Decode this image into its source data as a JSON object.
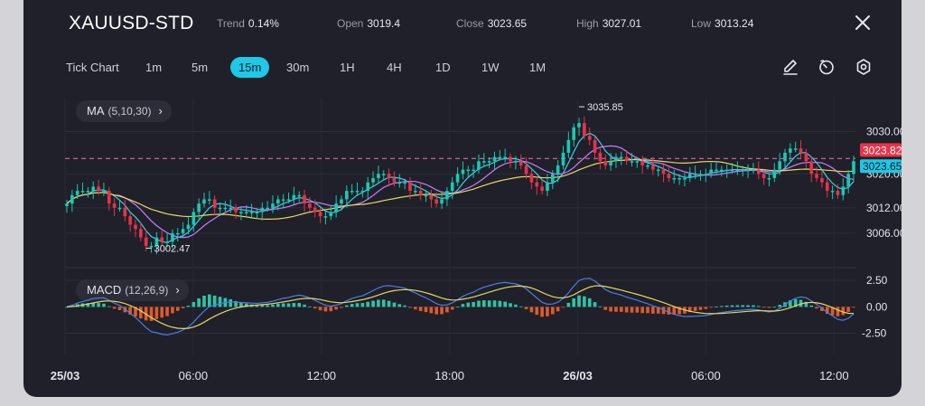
{
  "symbol": "XAUUSD-STD",
  "stats": [
    {
      "label": "Trend",
      "value": "0.14%"
    },
    {
      "label": "Open",
      "value": "3019.4"
    },
    {
      "label": "Close",
      "value": "3023.65"
    },
    {
      "label": "High",
      "value": "3027.01"
    },
    {
      "label": "Low",
      "value": "3013.24"
    }
  ],
  "timeframes": {
    "label": "Tick Chart",
    "items": [
      "1m",
      "5m",
      "15m",
      "30m",
      "1H",
      "4H",
      "1D",
      "1W",
      "1M"
    ],
    "active": "15m"
  },
  "tools": [
    "draw-icon",
    "clock-icon",
    "settings-icon"
  ],
  "indicators": {
    "ma": {
      "name": "MA",
      "params": "(5,10,30)",
      "chevron": "›"
    },
    "macd": {
      "name": "MACD",
      "params": "(12,26,9)",
      "chevron": "›"
    }
  },
  "colors": {
    "up": "#19c9b4",
    "down": "#e8334a",
    "ma5": "#3bd0e8",
    "ma10": "#c77dff",
    "ma30": "#e6d760",
    "hist_pos": "#2ec4a6",
    "hist_neg": "#e05a2b",
    "macd_line": "#4a7de8",
    "signal_line": "#e6d760",
    "close_tag": "#1ec8e6",
    "price_tag": "#e8334a"
  },
  "chart_data": {
    "type": "candlestick",
    "y_axis": {
      "ticks": [
        "3030.00",
        "3020.00",
        "3012.00",
        "3006.00"
      ],
      "tick_values": [
        3030,
        3020,
        3012,
        3006
      ],
      "range": [
        3000,
        3038
      ]
    },
    "x_axis": {
      "ticks": [
        "25/03",
        "06:00",
        "12:00",
        "18:00",
        "26/03",
        "06:00",
        "12:00"
      ],
      "bold_ticks": [
        "25/03",
        "26/03"
      ],
      "hours_span": [
        0,
        37
      ]
    },
    "price_tags": [
      {
        "label": "3023.82",
        "value": 3023.82,
        "kind": "price"
      },
      {
        "label": "3023.65",
        "value": 3023.65,
        "kind": "close"
      }
    ],
    "annotations": [
      {
        "label": "3035.85",
        "value": 3035.85,
        "kind": "high"
      },
      {
        "label": "3002.47",
        "value": 3002.47,
        "kind": "low"
      }
    ],
    "close_series": [
      3013,
      3015,
      3016,
      3016,
      3016,
      3017,
      3016,
      3016,
      3013,
      3012,
      3012,
      3010,
      3008,
      3007,
      3005,
      3003,
      3003,
      3005,
      3004,
      3004,
      3006,
      3006,
      3007,
      3008,
      3011,
      3013,
      3014,
      3014,
      3012,
      3012,
      3012,
      3012,
      3011,
      3011,
      3011,
      3011,
      3011,
      3012,
      3012,
      3013,
      3014,
      3014,
      3014,
      3015,
      3015,
      3013,
      3012,
      3011,
      3010,
      3010,
      3011,
      3013,
      3014,
      3016,
      3016,
      3016,
      3016,
      3018,
      3019,
      3020,
      3020,
      3019,
      3018,
      3018,
      3018,
      3016,
      3016,
      3015,
      3015,
      3014,
      3013,
      3014,
      3016,
      3018,
      3020,
      3021,
      3021,
      3021,
      3023,
      3023,
      3023,
      3024,
      3024,
      3024,
      3023,
      3023,
      3022,
      3020,
      3018,
      3017,
      3016,
      3018,
      3020,
      3022,
      3025,
      3028,
      3031,
      3032,
      3029,
      3028,
      3025,
      3023,
      3022,
      3023,
      3024,
      3024,
      3023,
      3023,
      3023,
      3022,
      3022,
      3021,
      3021,
      3020,
      3019,
      3019,
      3019,
      3019,
      3020,
      3020,
      3020,
      3020,
      3021,
      3021,
      3021,
      3021,
      3021,
      3021,
      3021,
      3021,
      3021,
      3020,
      3019,
      3019,
      3021,
      3023,
      3025,
      3026,
      3026,
      3025,
      3023,
      3020,
      3019,
      3018,
      3016,
      3016,
      3015,
      3017,
      3020,
      3023
    ],
    "macd_axis": {
      "ticks": [
        "2.50",
        "0.00",
        "-2.50"
      ],
      "tick_values": [
        2.5,
        0,
        -2.5
      ],
      "range": [
        -4.5,
        3.2
      ]
    }
  }
}
